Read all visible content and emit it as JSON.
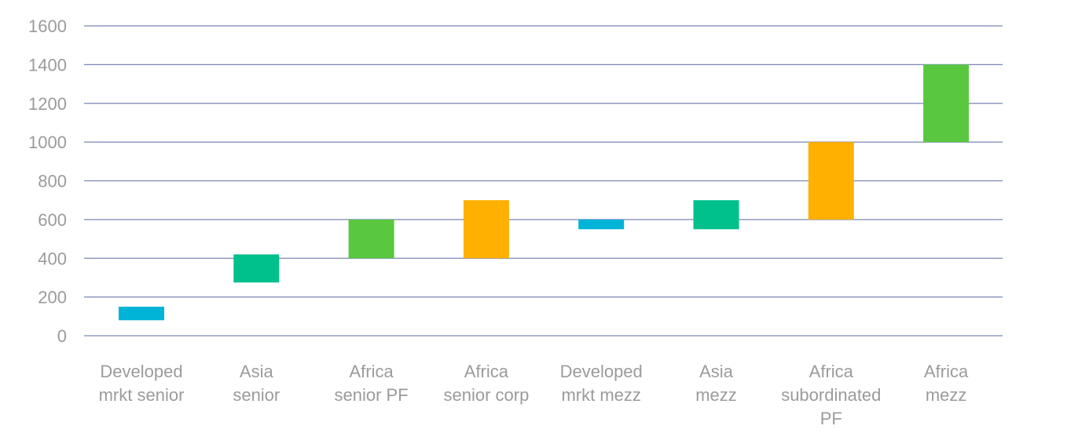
{
  "chart_data": {
    "type": "bar",
    "subtype": "floating-range",
    "title": "",
    "xlabel": "",
    "ylabel": "",
    "ylim": [
      0,
      1600
    ],
    "yticks": [
      0,
      200,
      400,
      600,
      800,
      1000,
      1200,
      1400,
      1600
    ],
    "grid": true,
    "legend": "none",
    "categories": [
      [
        "Developed",
        "mrkt senior"
      ],
      [
        "Asia",
        "senior"
      ],
      [
        "Africa",
        "senior PF"
      ],
      [
        "Africa",
        "senior corp"
      ],
      [
        "Developed",
        "mrkt mezz"
      ],
      [
        "Asia",
        "mezz"
      ],
      [
        "Africa",
        "subordinated",
        "PF"
      ],
      [
        "Africa",
        "mezz"
      ]
    ],
    "ranges": [
      {
        "low": 80,
        "high": 150,
        "color": "#00b4d8"
      },
      {
        "low": 275,
        "high": 420,
        "color": "#00c08b"
      },
      {
        "low": 400,
        "high": 600,
        "color": "#5ac83f"
      },
      {
        "low": 400,
        "high": 700,
        "color": "#ffb000"
      },
      {
        "low": 550,
        "high": 600,
        "color": "#00b4d8"
      },
      {
        "low": 550,
        "high": 700,
        "color": "#00c08b"
      },
      {
        "low": 600,
        "high": 1000,
        "color": "#ffb000"
      },
      {
        "low": 1000,
        "high": 1400,
        "color": "#5ac83f"
      }
    ]
  }
}
